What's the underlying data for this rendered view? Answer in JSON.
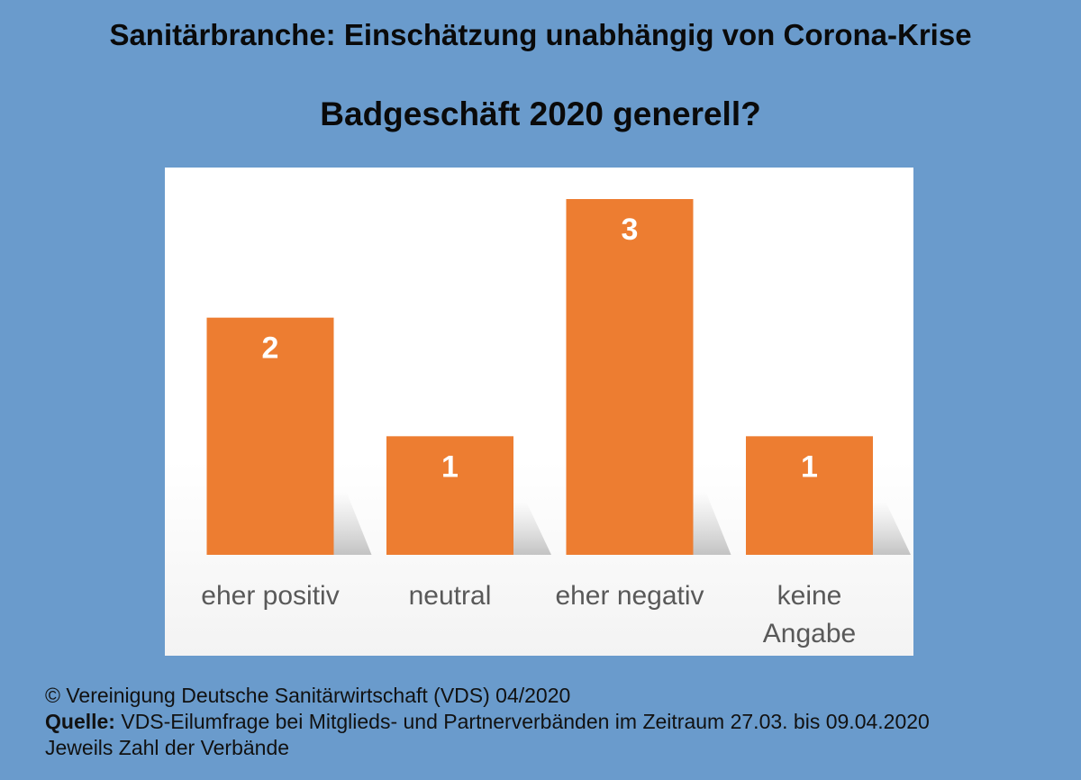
{
  "chart_data": {
    "type": "bar",
    "title": "Sanitärbranche: Einschätzung unabhängig von Corona-Krise",
    "subtitle": "Badgeschäft 2020 generell?",
    "categories": [
      "eher positiv",
      "neutral",
      "eher negativ",
      "keine Angabe"
    ],
    "category_lines": [
      [
        "eher positiv"
      ],
      [
        "neutral"
      ],
      [
        "eher negativ"
      ],
      [
        "keine",
        "Angabe"
      ]
    ],
    "values": [
      2,
      1,
      3,
      1
    ],
    "ylim": [
      0,
      3
    ],
    "grid": false,
    "bar_color": "#ed7d31",
    "data_label_color": "#ffffff",
    "tick_label_color": "#595959"
  },
  "footer": {
    "copyright": "© Vereinigung Deutsche Sanitärwirtschaft (VDS) 04/2020",
    "source_label": "Quelle:",
    "source_text": " VDS-Eilumfrage bei Mitglieds- und Partnerverbänden im Zeitraum 27.03. bis 09.04.2020",
    "note": "Jeweils Zahl der Verbände"
  }
}
